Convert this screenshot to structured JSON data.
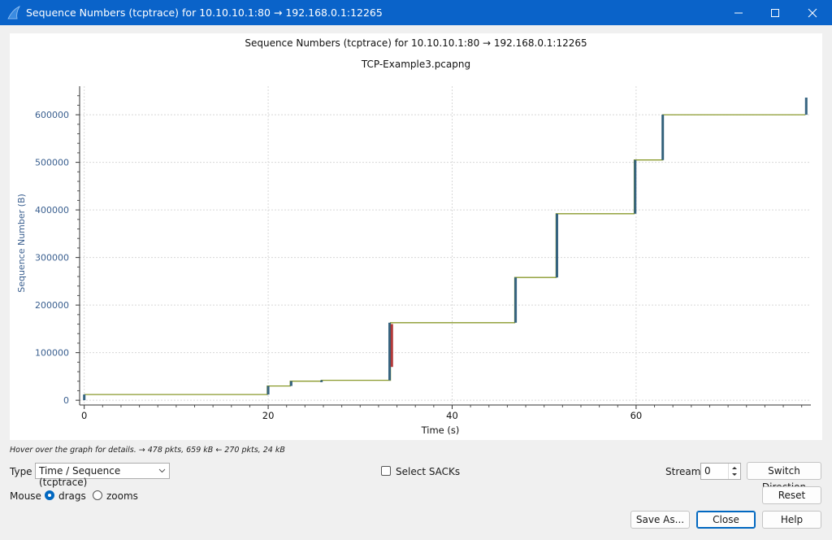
{
  "window": {
    "title": "Sequence Numbers (tcptrace) for 10.10.10.1:80 → 192.168.0.1:12265",
    "controls": {
      "minimize": "minimize",
      "maximize": "maximize",
      "close": "close"
    }
  },
  "chart_data": {
    "type": "line",
    "title": "Sequence Numbers (tcptrace) for 10.10.10.1:80 → 192.168.0.1:12265",
    "subtitle": "TCP-Example3.pcapng",
    "xlabel": "Time (s)",
    "ylabel": "Sequence Number (B)",
    "xlim": [
      -0.5,
      79
    ],
    "ylim": [
      -10000,
      660000
    ],
    "x_ticks": [
      0,
      20,
      40,
      60
    ],
    "y_ticks": [
      0,
      100000,
      200000,
      300000,
      400000,
      500000,
      600000
    ],
    "grid": true,
    "series": [
      {
        "color": "#8a9a2c",
        "x": [
          0.0,
          19.9,
          19.9,
          22.4,
          22.4,
          25.8,
          25.8,
          33.3,
          33.3,
          46.8,
          46.8,
          51.3,
          51.3,
          59.8,
          59.8,
          62.9,
          62.9,
          78.4
        ],
        "values": [
          12000,
          12000,
          30000,
          30000,
          40000,
          40000,
          42000,
          42000,
          163000,
          163000,
          258000,
          258000,
          392000,
          392000,
          505000,
          505000,
          600000,
          600000
        ]
      },
      {
        "color": "#2d5d7b",
        "segments": [
          {
            "x": 0.0,
            "from": 0,
            "to": 12000
          },
          {
            "x": 20.0,
            "from": 12000,
            "to": 30000
          },
          {
            "x": 22.5,
            "from": 30000,
            "to": 40000
          },
          {
            "x": 25.8,
            "from": 38000,
            "to": 42000
          },
          {
            "x": 33.2,
            "from": 42000,
            "to": 163000
          },
          {
            "x": 46.9,
            "from": 163000,
            "to": 258000
          },
          {
            "x": 51.4,
            "from": 258000,
            "to": 392000
          },
          {
            "x": 59.9,
            "from": 392000,
            "to": 505000
          },
          {
            "x": 62.9,
            "from": 505000,
            "to": 600000
          },
          {
            "x": 78.5,
            "from": 600000,
            "to": 636000
          }
        ]
      },
      {
        "color": "#b03030",
        "segments": [
          {
            "x": 33.45,
            "from": 70000,
            "to": 160000
          }
        ]
      }
    ]
  },
  "status_hint": "Hover over the graph for details. → 478 pkts, 659 kB ← 270 pkts, 24 kB",
  "controls": {
    "type_label": "Type",
    "type_value": "Time / Sequence (tcptrace)",
    "select_sacks_label": "Select SACKs",
    "select_sacks_checked": false,
    "stream_label": "Stream",
    "stream_value": "0",
    "switch_direction_label": "Switch Direction",
    "mouse_label": "Mouse",
    "mouse_options": [
      "drags",
      "zooms"
    ],
    "mouse_selected": "drags",
    "reset_label": "Reset",
    "save_as_label": "Save As...",
    "close_label": "Close",
    "help_label": "Help"
  }
}
